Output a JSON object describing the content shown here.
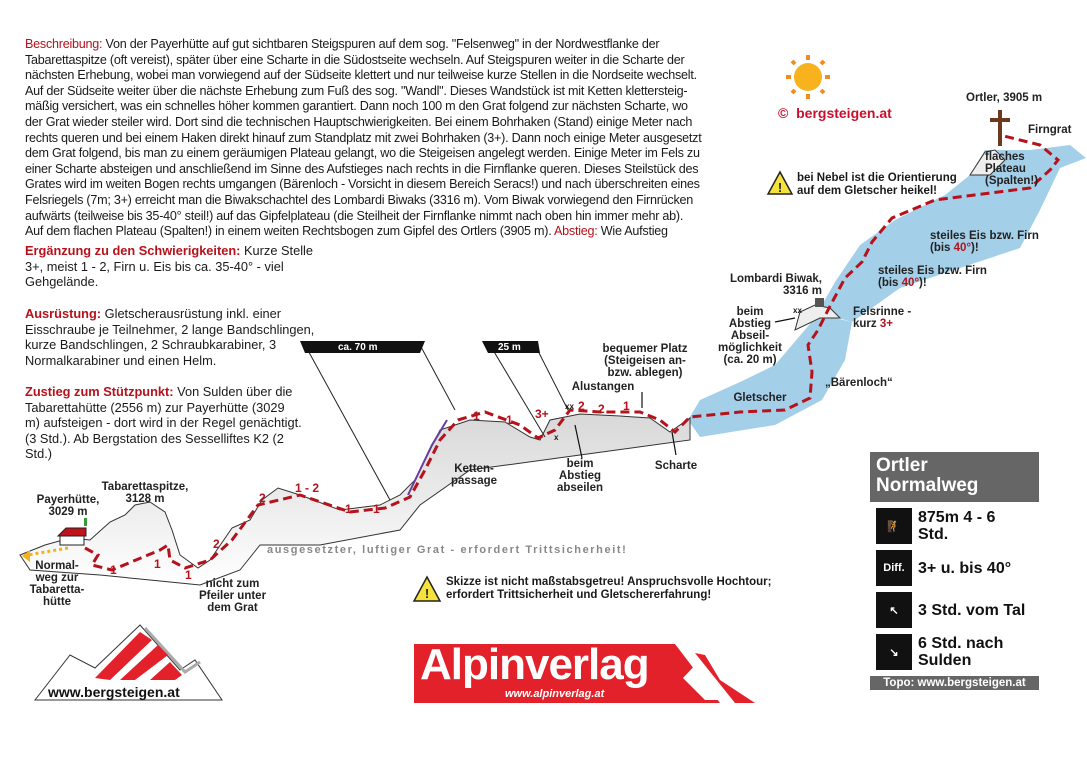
{
  "description": {
    "label": "Beschreibung:",
    "lines": [
      "Von der Payerhütte auf gut sichtbaren Steigspuren auf dem sog. \"Felsenweg\" in der Nordwestflanke der",
      "Tabarettaspitze (oft vereist), später über eine Scharte in die Südostseite wechseln. Auf Steigspuren weiter in die Scharte der",
      "nächsten Erhebung, wobei man vorwiegend auf der Südseite klettert und nur teilweise kurze Stellen in die Nordseite wechselt.",
      "Auf der Südseite weiter über die nächste Erhebung zum Fuß des sog. \"Wandl\". Dieses Wandstück ist mit Ketten klettersteig-",
      "mäßig versichert, was ein schnelles höher kommen garantiert. Dann noch 100 m den Grat folgend zur nächsten Scharte, wo",
      "der Grat wieder steiler wird. Dort sind die technischen Hauptschwierigkeiten. Bei einem Bohrhaken (Stand) einige Meter nach",
      "rechts queren und bei einem Haken direkt hinauf zum Standplatz mit zwei Bohrhaken (3+). Dann noch einige Meter ausgesetzt",
      "dem Grat folgend, bis man zu einem geräumigen Plateau gelangt, wo die Steigeisen angelegt werden. Einige Meter im Fels zu",
      "einer Scharte absteigen und anschließend im Sinne des Aufstieges nach rechts in die Firnflanke queren. Dieses Steilstück des",
      "Grates wird im weiten Bogen rechts umgangen (Bärenloch - Vorsicht in diesem Bereich Seracs!) und nach überschreiten eines",
      "Felsriegels (7m; 3+) erreicht man die Biwakschachtel des Lombardi Biwaks (3316 m). Vom Biwak vorwiegend den Firnrücken",
      "aufwärts (teilweise bis 35-40° steil!) auf das Gipfelplateau (die Steilheit der Firnflanke nimmt nach oben hin immer mehr ab).",
      "Auf dem flachen Plateau (Spalten!) in einem weiten Rechtsbogen zum Gipfel des Ortlers (3905 m)."
    ],
    "descent_label": "Abstieg:",
    "descent_text": "Wie Aufstieg"
  },
  "difficulty": {
    "label": "Ergänzung zu den Schwierigkeiten:",
    "text": "Kurze Stelle 3+, meist 1 - 2, Firn u. Eis bis ca. 35-40° - viel Gehgelände."
  },
  "equipment": {
    "label": "Ausrüstung:",
    "text": "Gletscherausrüstung inkl. einer Eisschraube je Teilnehmer, 2 lange Bandschlingen, kurze Bandschlingen, 2 Schraubkarabiner, 3 Normalkarabiner und einen Helm."
  },
  "approach": {
    "label": "Zustieg zum Stützpunkt:",
    "text": "Von Sulden über die Tabarettahütte (2556 m) zur Payerhütte (3029 m) aufsteigen - dort wird in der Regel genächtigt. (3 Std.). Ab Bergstation des Sesselliftes K2 (2 Std.)"
  },
  "logo_top": {
    "copyright": "©",
    "text": "bergsteigen.at"
  },
  "warnings": {
    "fog": "bei Nebel ist die Orientierung auf dem Gletscher heikel!",
    "scale": "Skizze ist nicht maßstabsgetreu! Anspruchsvolle Hochtour; erfordert Trittsicherheit und Gletschererfahrung!"
  },
  "topo_labels": {
    "payerhuette": "Payerhütte, 3029 m",
    "tabarettaspitze": "Tabarettaspitze, 3128 m",
    "normalweg": "Normal-weg zur Tabaretta-hütte",
    "nicht_pfeiler": "nicht zum Pfeiler unter dem Grat",
    "grat": "ausgesetzter, luftiger Grat - erfordert Trittsicherheit!",
    "scale_70": "ca. 70 m",
    "scale_25": "25 m",
    "ketten": "Ketten-passage",
    "abseilen": "beim Abstieg abseilen",
    "alustangen": "Alustangen",
    "platz": "bequemer Platz (Steigeisen an- bzw. ablegen)",
    "scharte": "Scharte",
    "gletscher": "Gletscher",
    "abseil_moeglich": "beim Abstieg Abseil-möglichkeit (ca. 20 m)",
    "biwak": "Lombardi Biwak, 3316 m",
    "felsrinne": "Felsrinne - kurz",
    "felsrinne_grade": "3+",
    "baerenloch": "„Bärenloch“",
    "steil1": "steiles Eis bzw. Firn (bis",
    "steil2": "steiles Eis bzw. Firn (bis",
    "angle": "40°",
    "close": ")!",
    "plateau": "flaches Plateau (Spalten!)",
    "firngrat": "Firngrat",
    "ortler": "Ortler, 3905 m",
    "xx": "xx",
    "x": "x"
  },
  "grades": [
    "1",
    "1",
    "1",
    "1",
    "2",
    "2",
    "1 - 2",
    "1",
    "1",
    "1",
    "1",
    "3+",
    "2",
    "2",
    "1"
  ],
  "card": {
    "title": "Ortler Normalweg",
    "rows": [
      {
        "icon": "climber-icon",
        "text": "875m 4 - 6 Std."
      },
      {
        "icon": "Diff.",
        "text": "3+ u. bis 40°"
      },
      {
        "icon": "ascent-icon",
        "text": "3 Std. vom Tal"
      },
      {
        "icon": "descent-icon",
        "text": "6 Std. nach Sulden"
      }
    ],
    "footer": "Topo: www.bergsteigen.at"
  },
  "logo_bottom_left": "www.bergsteigen.at",
  "logo_alpinverlag": {
    "name": "Alpinverlag",
    "url": "www.alpinverlag.at"
  },
  "colors": {
    "route": "#b5121b",
    "glacier": "#a4cfe9",
    "card": "#666666",
    "accent": "#b5121b"
  }
}
